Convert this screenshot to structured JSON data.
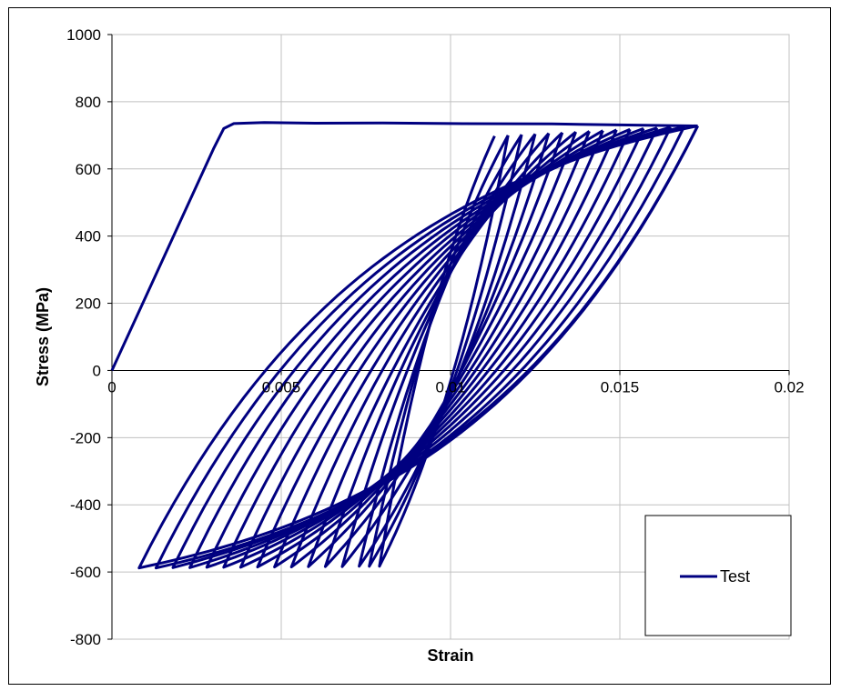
{
  "chart_data": {
    "type": "line",
    "title": "",
    "xlabel": "Strain",
    "ylabel": "Stress (MPa)",
    "xlim": [
      0,
      0.02
    ],
    "ylim": [
      -800,
      1000
    ],
    "x_ticks": [
      0,
      0.005,
      0.01,
      0.015,
      0.02
    ],
    "x_tick_labels": [
      "0",
      "0.005",
      "0.01",
      "0.015",
      "0.02"
    ],
    "y_ticks": [
      -800,
      -600,
      -400,
      -200,
      0,
      200,
      400,
      600,
      800,
      1000
    ],
    "y_tick_labels": [
      "-800",
      "-600",
      "-400",
      "-200",
      "0",
      "200",
      "400",
      "600",
      "800",
      "1000"
    ],
    "grid": true,
    "legend_position": "bottom-right",
    "series": [
      {
        "name": "Test",
        "color": "#000080",
        "initial_loading": {
          "x": [
            0,
            0.001,
            0.002,
            0.003,
            0.0033,
            0.0036,
            0.0045,
            0.006,
            0.008,
            0.01,
            0.013,
            0.0173
          ],
          "y": [
            0,
            220,
            440,
            660,
            720,
            735,
            738,
            736,
            737,
            735,
            734,
            728
          ]
        },
        "cycles": {
          "count": 16,
          "max_strain": [
            0.0173,
            0.0169,
            0.0165,
            0.0161,
            0.0157,
            0.0153,
            0.0149,
            0.0145,
            0.0141,
            0.0137,
            0.0133,
            0.0129,
            0.0125,
            0.0121,
            0.0117,
            0.0113
          ],
          "min_strain": [
            0.0008,
            0.0013,
            0.0018,
            0.0023,
            0.0028,
            0.0033,
            0.0038,
            0.0043,
            0.0048,
            0.0053,
            0.0058,
            0.0063,
            0.0068,
            0.0073,
            0.0076,
            0.0079
          ],
          "peak_stress": [
            728,
            726,
            724,
            722,
            720,
            718,
            716,
            714,
            712,
            710,
            708,
            706,
            704,
            702,
            700,
            698
          ],
          "min_stress": [
            -588,
            -588,
            -587,
            -587,
            -586,
            -586,
            -586,
            -585,
            -585,
            -585,
            -584,
            -584,
            -584,
            -583,
            -583,
            -583
          ]
        }
      }
    ]
  }
}
